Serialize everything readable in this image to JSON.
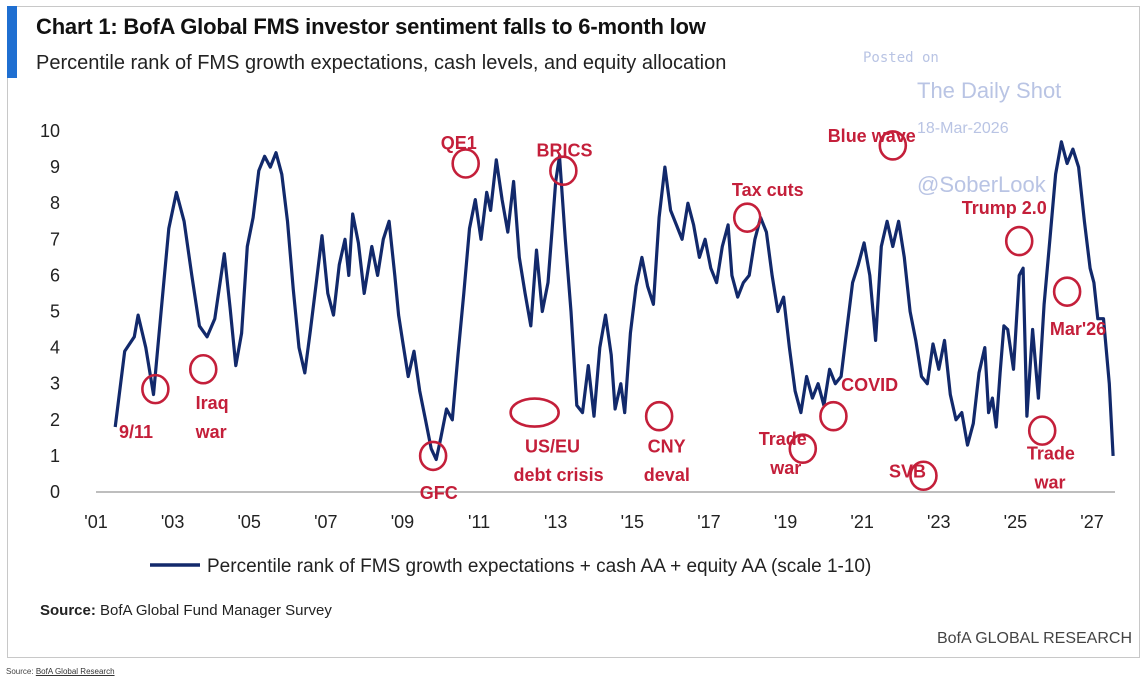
{
  "header": {
    "title": "Chart 1: BofA Global FMS investor sentiment falls to 6-month low",
    "subtitle": "Percentile rank of FMS growth expectations, cash levels, and equity allocation"
  },
  "watermark": {
    "posted": "Posted on",
    "name": "The Daily Shot",
    "date": "18-Mar-2026",
    "handle": "@SoberLook",
    "color": "#b9c4e4"
  },
  "footer": {
    "source_label": "Source:",
    "source_text": "BofA Global Fund Manager Survey",
    "brand": "BofA GLOBAL RESEARCH",
    "outer_source_label": "Source:",
    "outer_source_link": "BofA Global Research"
  },
  "chart_data": {
    "type": "line",
    "xlim": [
      2001,
      2027.6
    ],
    "ylim": [
      0,
      10
    ],
    "x_ticks": [
      {
        "value": 2001,
        "label": "'01"
      },
      {
        "value": 2003,
        "label": "'03"
      },
      {
        "value": 2005,
        "label": "'05"
      },
      {
        "value": 2007,
        "label": "'07"
      },
      {
        "value": 2009,
        "label": "'09"
      },
      {
        "value": 2011,
        "label": "'11"
      },
      {
        "value": 2013,
        "label": "'13"
      },
      {
        "value": 2015,
        "label": "'15"
      },
      {
        "value": 2017,
        "label": "'17"
      },
      {
        "value": 2019,
        "label": "'19"
      },
      {
        "value": 2021,
        "label": "'21"
      },
      {
        "value": 2023,
        "label": "'23"
      },
      {
        "value": 2025,
        "label": "'25"
      },
      {
        "value": 2027,
        "label": "'27"
      }
    ],
    "y_ticks": [
      0,
      1,
      2,
      3,
      4,
      5,
      6,
      7,
      8,
      9,
      10
    ],
    "grid": false,
    "legend_position": "bottom",
    "line_color": "#12296b",
    "annotation_color": "#c41f3a",
    "series": [
      {
        "name": "Percentile rank of FMS growth expectations + cash AA + equity AA (scale 1-10)",
        "points": [
          [
            2001.5,
            1.8
          ],
          [
            2001.75,
            3.9
          ],
          [
            2002.0,
            4.3
          ],
          [
            2002.1,
            4.9
          ],
          [
            2002.3,
            4.0
          ],
          [
            2002.5,
            2.7
          ],
          [
            2002.7,
            5.0
          ],
          [
            2002.9,
            7.3
          ],
          [
            2003.1,
            8.3
          ],
          [
            2003.3,
            7.5
          ],
          [
            2003.5,
            6.0
          ],
          [
            2003.7,
            4.6
          ],
          [
            2003.9,
            4.3
          ],
          [
            2004.1,
            4.8
          ],
          [
            2004.35,
            6.6
          ],
          [
            2004.5,
            5.1
          ],
          [
            2004.65,
            3.5
          ],
          [
            2004.8,
            4.4
          ],
          [
            2004.95,
            6.8
          ],
          [
            2005.1,
            7.6
          ],
          [
            2005.25,
            8.9
          ],
          [
            2005.4,
            9.3
          ],
          [
            2005.55,
            9.0
          ],
          [
            2005.7,
            9.4
          ],
          [
            2005.85,
            8.8
          ],
          [
            2006.0,
            7.5
          ],
          [
            2006.15,
            5.6
          ],
          [
            2006.3,
            4.0
          ],
          [
            2006.45,
            3.3
          ],
          [
            2006.6,
            4.5
          ],
          [
            2006.75,
            5.8
          ],
          [
            2006.9,
            7.1
          ],
          [
            2007.05,
            5.5
          ],
          [
            2007.2,
            4.9
          ],
          [
            2007.35,
            6.3
          ],
          [
            2007.5,
            7.0
          ],
          [
            2007.6,
            6.0
          ],
          [
            2007.7,
            7.7
          ],
          [
            2007.85,
            6.9
          ],
          [
            2008.0,
            5.5
          ],
          [
            2008.2,
            6.8
          ],
          [
            2008.35,
            6.0
          ],
          [
            2008.5,
            7.0
          ],
          [
            2008.65,
            7.5
          ],
          [
            2008.8,
            6.0
          ],
          [
            2008.9,
            4.9
          ],
          [
            2009.0,
            4.2
          ],
          [
            2009.15,
            3.2
          ],
          [
            2009.3,
            3.9
          ],
          [
            2009.45,
            2.8
          ],
          [
            2009.6,
            2.0
          ],
          [
            2009.75,
            1.2
          ],
          [
            2009.88,
            0.9
          ],
          [
            2010.0,
            1.5
          ],
          [
            2010.15,
            2.3
          ],
          [
            2010.3,
            2.0
          ],
          [
            2010.45,
            3.8
          ],
          [
            2010.6,
            5.5
          ],
          [
            2010.75,
            7.3
          ],
          [
            2010.9,
            8.1
          ],
          [
            2011.05,
            7.0
          ],
          [
            2011.2,
            8.3
          ],
          [
            2011.3,
            7.8
          ],
          [
            2011.45,
            9.2
          ],
          [
            2011.6,
            8.1
          ],
          [
            2011.75,
            7.2
          ],
          [
            2011.9,
            8.6
          ],
          [
            2012.05,
            6.5
          ],
          [
            2012.2,
            5.5
          ],
          [
            2012.35,
            4.6
          ],
          [
            2012.5,
            6.7
          ],
          [
            2012.65,
            5.0
          ],
          [
            2012.8,
            5.8
          ],
          [
            2012.9,
            7.2
          ],
          [
            2013.0,
            8.6
          ],
          [
            2013.1,
            9.3
          ],
          [
            2013.25,
            7.0
          ],
          [
            2013.4,
            5.0
          ],
          [
            2013.55,
            2.4
          ],
          [
            2013.7,
            2.2
          ],
          [
            2013.85,
            3.5
          ],
          [
            2014.0,
            2.1
          ],
          [
            2014.15,
            4.0
          ],
          [
            2014.3,
            4.9
          ],
          [
            2014.45,
            3.8
          ],
          [
            2014.55,
            2.3
          ],
          [
            2014.7,
            3.0
          ],
          [
            2014.8,
            2.2
          ],
          [
            2014.95,
            4.4
          ],
          [
            2015.1,
            5.7
          ],
          [
            2015.25,
            6.5
          ],
          [
            2015.4,
            5.7
          ],
          [
            2015.55,
            5.2
          ],
          [
            2015.7,
            7.6
          ],
          [
            2015.85,
            9.0
          ],
          [
            2016.0,
            7.8
          ],
          [
            2016.15,
            7.4
          ],
          [
            2016.3,
            7.0
          ],
          [
            2016.45,
            8.0
          ],
          [
            2016.6,
            7.4
          ],
          [
            2016.75,
            6.5
          ],
          [
            2016.9,
            7.0
          ],
          [
            2017.05,
            6.2
          ],
          [
            2017.2,
            5.8
          ],
          [
            2017.35,
            6.8
          ],
          [
            2017.5,
            7.4
          ],
          [
            2017.6,
            6.0
          ],
          [
            2017.75,
            5.4
          ],
          [
            2017.9,
            5.8
          ],
          [
            2018.05,
            6.0
          ],
          [
            2018.2,
            7.0
          ],
          [
            2018.35,
            7.6
          ],
          [
            2018.5,
            7.2
          ],
          [
            2018.65,
            6.0
          ],
          [
            2018.8,
            5.0
          ],
          [
            2018.95,
            5.4
          ],
          [
            2019.1,
            4.0
          ],
          [
            2019.25,
            2.8
          ],
          [
            2019.4,
            2.2
          ],
          [
            2019.55,
            3.2
          ],
          [
            2019.7,
            2.6
          ],
          [
            2019.85,
            3.0
          ],
          [
            2020.0,
            2.4
          ],
          [
            2020.15,
            3.4
          ],
          [
            2020.3,
            3.0
          ],
          [
            2020.45,
            3.2
          ],
          [
            2020.6,
            4.5
          ],
          [
            2020.75,
            5.8
          ],
          [
            2020.9,
            6.3
          ],
          [
            2021.05,
            6.9
          ],
          [
            2021.2,
            6.0
          ],
          [
            2021.35,
            4.2
          ],
          [
            2021.5,
            6.8
          ],
          [
            2021.65,
            7.5
          ],
          [
            2021.8,
            6.8
          ],
          [
            2021.95,
            7.5
          ],
          [
            2022.1,
            6.5
          ],
          [
            2022.25,
            5.0
          ],
          [
            2022.4,
            4.2
          ],
          [
            2022.55,
            3.2
          ],
          [
            2022.7,
            3.0
          ],
          [
            2022.85,
            4.1
          ],
          [
            2023.0,
            3.4
          ],
          [
            2023.15,
            4.2
          ],
          [
            2023.3,
            2.7
          ],
          [
            2023.45,
            2.0
          ],
          [
            2023.6,
            2.2
          ],
          [
            2023.75,
            1.3
          ],
          [
            2023.9,
            1.9
          ],
          [
            2024.05,
            3.3
          ],
          [
            2024.2,
            4.0
          ],
          [
            2024.3,
            2.2
          ],
          [
            2024.4,
            2.6
          ],
          [
            2024.5,
            1.8
          ],
          [
            2024.6,
            3.3
          ],
          [
            2024.7,
            4.6
          ],
          [
            2024.8,
            4.5
          ],
          [
            2024.95,
            3.4
          ],
          [
            2025.1,
            6.0
          ],
          [
            2025.2,
            6.2
          ],
          [
            2025.3,
            2.1
          ],
          [
            2025.45,
            4.5
          ],
          [
            2025.6,
            2.6
          ],
          [
            2025.75,
            5.2
          ],
          [
            2025.9,
            7.0
          ],
          [
            2026.05,
            8.8
          ],
          [
            2026.2,
            9.7
          ],
          [
            2026.35,
            9.1
          ],
          [
            2026.5,
            9.5
          ],
          [
            2026.65,
            9.0
          ],
          [
            2026.8,
            7.5
          ],
          [
            2026.95,
            6.2
          ],
          [
            2027.05,
            5.8
          ],
          [
            2027.15,
            4.8
          ],
          [
            2027.3,
            4.8
          ],
          [
            2027.45,
            3.0
          ],
          [
            2027.55,
            1.0
          ]
        ]
      }
    ],
    "annotations": [
      {
        "label": "9/11",
        "x": 2001.6,
        "y": 1.5,
        "circle": [
          2002.55,
          2.85
        ]
      },
      {
        "label": "Iraq",
        "x": 2003.6,
        "y": 2.3,
        "circle": [
          2003.8,
          3.4
        ]
      },
      {
        "label": "war",
        "x": 2003.6,
        "y": 1.5,
        "circle": null
      },
      {
        "label": "GFC",
        "x": 2009.45,
        "y": -0.2,
        "circle": [
          2009.8,
          1.0
        ]
      },
      {
        "label": "QE1",
        "x": 2010.0,
        "y": 9.5,
        "circle": [
          2010.65,
          9.1
        ]
      },
      {
        "label": "US/EU",
        "x": 2012.2,
        "y": 1.1,
        "circle": [
          2012.45,
          2.2
        ]
      },
      {
        "label": "debt crisis",
        "x": 2011.9,
        "y": 0.3,
        "circle": null
      },
      {
        "label": "BRICS",
        "x": 2012.5,
        "y": 9.3,
        "circle": [
          2013.2,
          8.9
        ]
      },
      {
        "label": "CNY",
        "x": 2015.4,
        "y": 1.1,
        "circle": [
          2015.7,
          2.1
        ]
      },
      {
        "label": "deval",
        "x": 2015.3,
        "y": 0.3,
        "circle": null
      },
      {
        "label": "Tax cuts",
        "x": 2017.6,
        "y": 8.2,
        "circle": [
          2018.0,
          7.6
        ]
      },
      {
        "label": "Trade",
        "x": 2018.3,
        "y": 1.3,
        "circle": [
          2019.45,
          1.2
        ]
      },
      {
        "label": "war",
        "x": 2018.6,
        "y": 0.5,
        "circle": null
      },
      {
        "label": "COVID",
        "x": 2020.45,
        "y": 2.8,
        "circle": [
          2020.25,
          2.1
        ]
      },
      {
        "label": "Blue wave",
        "x": 2020.1,
        "y": 9.7,
        "circle": [
          2021.8,
          9.6
        ]
      },
      {
        "label": "SVB",
        "x": 2021.7,
        "y": 0.4,
        "circle": [
          2022.6,
          0.45
        ]
      },
      {
        "label": "Trump 2.0",
        "x": 2023.6,
        "y": 7.7,
        "circle": [
          2025.1,
          6.95
        ]
      },
      {
        "label": "Trade",
        "x": 2025.3,
        "y": 0.9,
        "circle": [
          2025.7,
          1.7
        ]
      },
      {
        "label": "war",
        "x": 2025.5,
        "y": 0.1,
        "circle": null
      },
      {
        "label": "Mar'26",
        "x": 2025.9,
        "y": 4.35,
        "circle": [
          2026.35,
          5.55
        ]
      }
    ]
  }
}
